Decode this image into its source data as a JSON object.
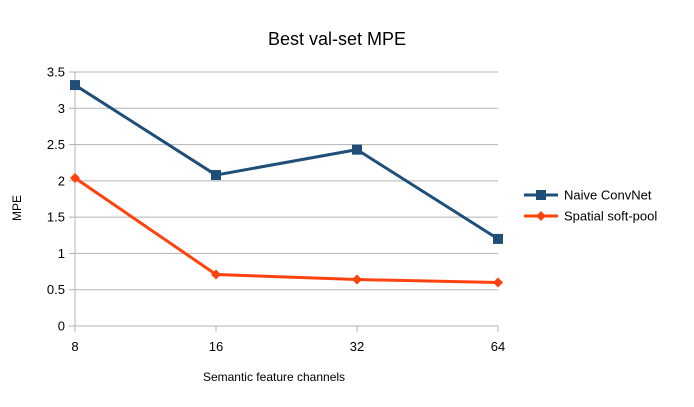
{
  "chart_data": {
    "type": "line",
    "title": "Best val-set MPE",
    "xlabel": "Semantic feature channels",
    "ylabel": "MPE",
    "categories": [
      "8",
      "16",
      "32",
      "64"
    ],
    "ylim": [
      0,
      3.5
    ],
    "yticks": [
      "0",
      "0.5",
      "1",
      "1.5",
      "2",
      "2.5",
      "3",
      "3.5"
    ],
    "grid": true,
    "legend_position": "right",
    "series": [
      {
        "name": "Naive ConvNet",
        "values": [
          3.32,
          2.08,
          2.43,
          1.2
        ],
        "color": "#1f4e79",
        "marker": "square"
      },
      {
        "name": "Spatial soft-pool",
        "values": [
          2.04,
          0.71,
          0.64,
          0.6
        ],
        "color": "#ff420e",
        "marker": "diamond"
      }
    ]
  }
}
